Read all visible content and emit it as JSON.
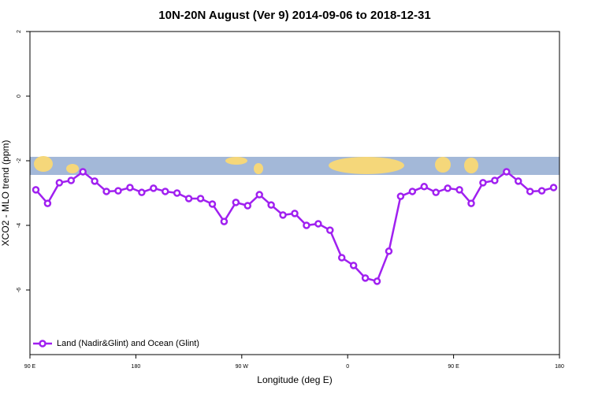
{
  "chart_data": {
    "type": "line",
    "title": "10N-20N August (Ver 9)   2014-09-06 to 2018-12-31",
    "xlabel": "Longitude (deg E)",
    "ylabel": "XCO2 - MLO trend (ppm)",
    "x": [
      95,
      105,
      115,
      125,
      135,
      145,
      155,
      165,
      175,
      185,
      195,
      205,
      215,
      225,
      235,
      245,
      255,
      265,
      275,
      285,
      295,
      305,
      315,
      325,
      335,
      345,
      355,
      365,
      375,
      385,
      395,
      405,
      415,
      425,
      435,
      445,
      455,
      465,
      475,
      485,
      495,
      505,
      515,
      525,
      535
    ],
    "series": [
      {
        "name": "Land (Nadir&Glint) and Ocean (Glint)",
        "color": "#a020f0",
        "values": [
          -2.9,
          -3.32,
          -2.68,
          -2.61,
          -2.34,
          -2.63,
          -2.95,
          -2.93,
          -2.83,
          -2.98,
          -2.85,
          -2.95,
          -3.0,
          -3.17,
          -3.17,
          -3.34,
          -3.88,
          -3.29,
          -3.39,
          -3.05,
          -3.37,
          -3.68,
          -3.63,
          -4.0,
          -3.95,
          -4.15,
          -5.0,
          -5.24,
          -5.63,
          -5.73,
          -4.8,
          -3.1,
          -2.95,
          -2.8,
          -2.98,
          -2.85,
          -2.9,
          -3.32,
          -2.68,
          -2.61,
          -2.34,
          -2.63,
          -2.95,
          -2.93,
          -2.83
        ]
      }
    ],
    "xlim": [
      90,
      540
    ],
    "xticks": [
      {
        "value": 90,
        "label": "90 E"
      },
      {
        "value": 180,
        "label": "180"
      },
      {
        "value": 270,
        "label": "90 W"
      },
      {
        "value": 360,
        "label": "0"
      },
      {
        "value": 450,
        "label": "90 E"
      },
      {
        "value": 540,
        "label": "180"
      }
    ],
    "ylim": [
      -8,
      2
    ],
    "yticks": [
      -6,
      -4,
      -2,
      0,
      2
    ],
    "legend": "bottom-left"
  }
}
